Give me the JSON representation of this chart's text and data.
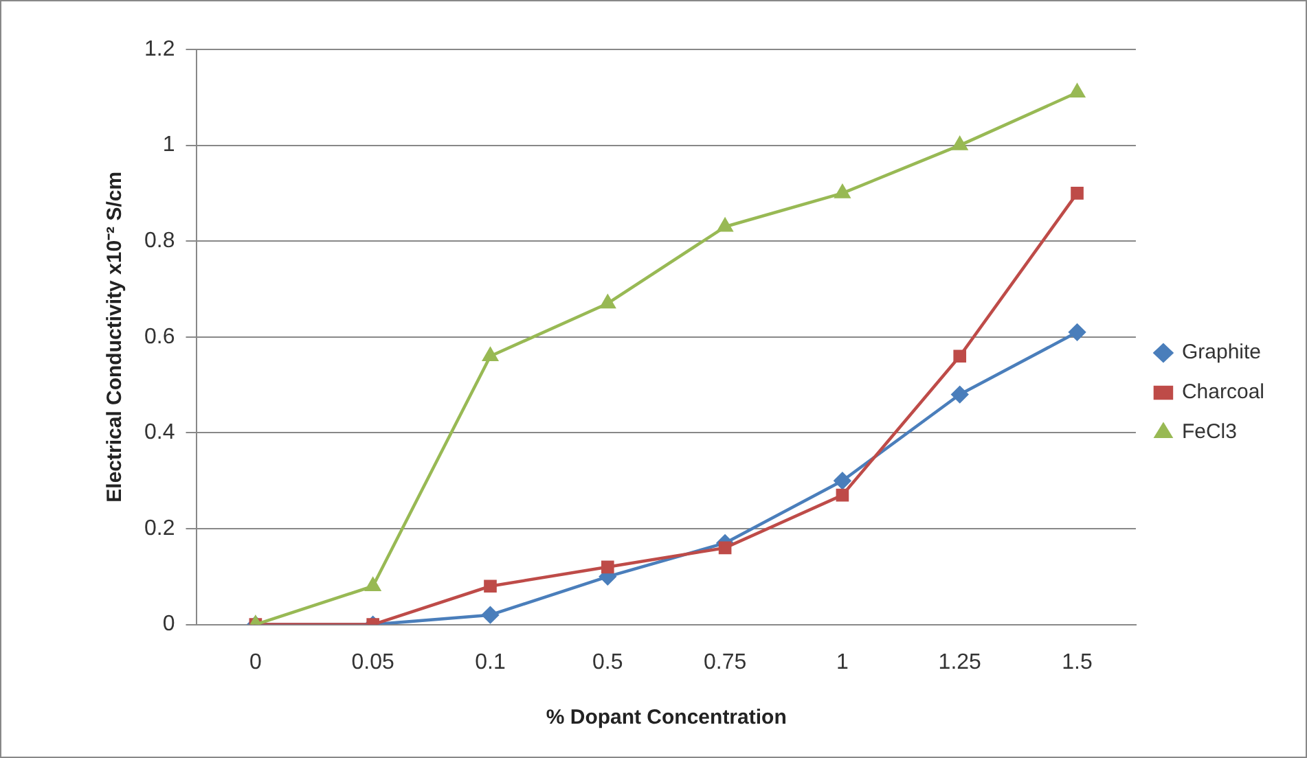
{
  "chart_data": {
    "type": "line",
    "xlabel": "% Dopant Concentration",
    "ylabel": "Electrical Conductivity x10⁻² S/cm",
    "categories": [
      "0",
      "0.05",
      "0.1",
      "0.5",
      "0.75",
      "1",
      "1.25",
      "1.5"
    ],
    "series": [
      {
        "name": "Graphite",
        "color": "#4a7ebb",
        "marker": "diamond",
        "values": [
          0,
          0,
          0.02,
          0.1,
          0.17,
          0.3,
          0.48,
          0.61
        ]
      },
      {
        "name": "Charcoal",
        "color": "#be4b48",
        "marker": "square",
        "values": [
          0,
          0,
          0.08,
          0.12,
          0.16,
          0.27,
          0.56,
          0.9
        ]
      },
      {
        "name": "FeCl3",
        "color": "#98b954",
        "marker": "triangle",
        "values": [
          0,
          0.08,
          0.56,
          0.67,
          0.83,
          0.9,
          1.0,
          1.11
        ]
      }
    ],
    "ylim": [
      0,
      1.2
    ],
    "yticks": [
      0,
      0.2,
      0.4,
      0.6,
      0.8,
      1,
      1.2
    ],
    "grid": "y",
    "legend": "right",
    "line_style": "solid"
  }
}
